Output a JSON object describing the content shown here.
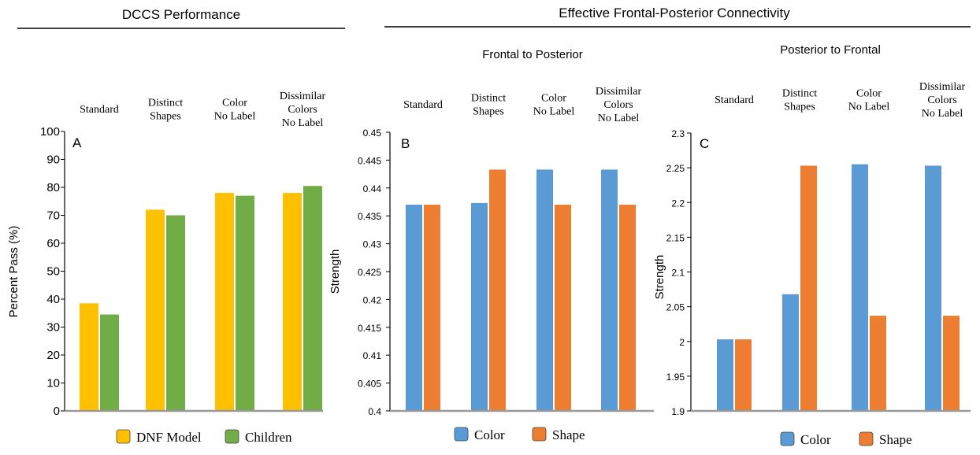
{
  "headers": {
    "left": "DCCS Performance",
    "right": "Effective Frontal-Posterior Connectivity",
    "sub_b": "Frontal to Posterior",
    "sub_c": "Posterior to Frontal"
  },
  "categories": [
    [
      "Standard"
    ],
    [
      "Distinct",
      "Shapes"
    ],
    [
      "Color",
      "No Label"
    ],
    [
      "Dissimilar",
      "Colors",
      "No Label"
    ]
  ],
  "colors": {
    "dnf": "#ffc000",
    "children": "#70ad47",
    "color": "#5b9bd5",
    "shape": "#ed7d31",
    "axis": "#999999"
  },
  "chart_data": [
    {
      "id": "A",
      "type": "bar",
      "panel_label": "A",
      "categories": [
        "Standard",
        "Distinct Shapes",
        "Color No Label",
        "Dissimilar Colors No Label"
      ],
      "series": [
        {
          "name": "DNF Model",
          "values": [
            38.5,
            72,
            78,
            78
          ]
        },
        {
          "name": "Children",
          "values": [
            34.5,
            70,
            77,
            80.5
          ]
        }
      ],
      "ylabel": "Percent Pass (%)",
      "ylim": [
        0,
        100
      ],
      "yticks": [
        "0",
        "10",
        "20",
        "30",
        "40",
        "50",
        "60",
        "70",
        "80",
        "90",
        "100"
      ],
      "legend": "bottom"
    },
    {
      "id": "B",
      "type": "bar",
      "panel_label": "B",
      "title": "Frontal to Posterior",
      "categories": [
        "Standard",
        "Distinct Shapes",
        "Color No Label",
        "Dissimilar Colors No Label"
      ],
      "series": [
        {
          "name": "Color",
          "values": [
            0.437,
            0.4373,
            0.4433,
            0.4433
          ]
        },
        {
          "name": "Shape",
          "values": [
            0.437,
            0.4433,
            0.437,
            0.437
          ]
        }
      ],
      "ylabel": "Strength",
      "ylim": [
        0.4,
        0.45
      ],
      "yticks": [
        "0.4",
        "0.405",
        "0.41",
        "0.415",
        "0.42",
        "0.425",
        "0.43",
        "0.435",
        "0.44",
        "0.445",
        "0.45"
      ],
      "legend": "bottom"
    },
    {
      "id": "C",
      "type": "bar",
      "panel_label": "C",
      "title": "Posterior to Frontal",
      "categories": [
        "Standard",
        "Distinct Shapes",
        "Color No Label",
        "Dissimilar Colors No Label"
      ],
      "series": [
        {
          "name": "Color",
          "values": [
            2.003,
            2.068,
            2.255,
            2.253
          ]
        },
        {
          "name": "Shape",
          "values": [
            2.003,
            2.253,
            2.037,
            2.037
          ]
        }
      ],
      "ylabel": "Strength",
      "ylim": [
        1.9,
        2.3
      ],
      "yticks": [
        "1.9",
        "1.95",
        "2",
        "2.05",
        "2.1",
        "2.15",
        "2.2",
        "2.25",
        "2.3"
      ],
      "legend": "bottom"
    }
  ]
}
